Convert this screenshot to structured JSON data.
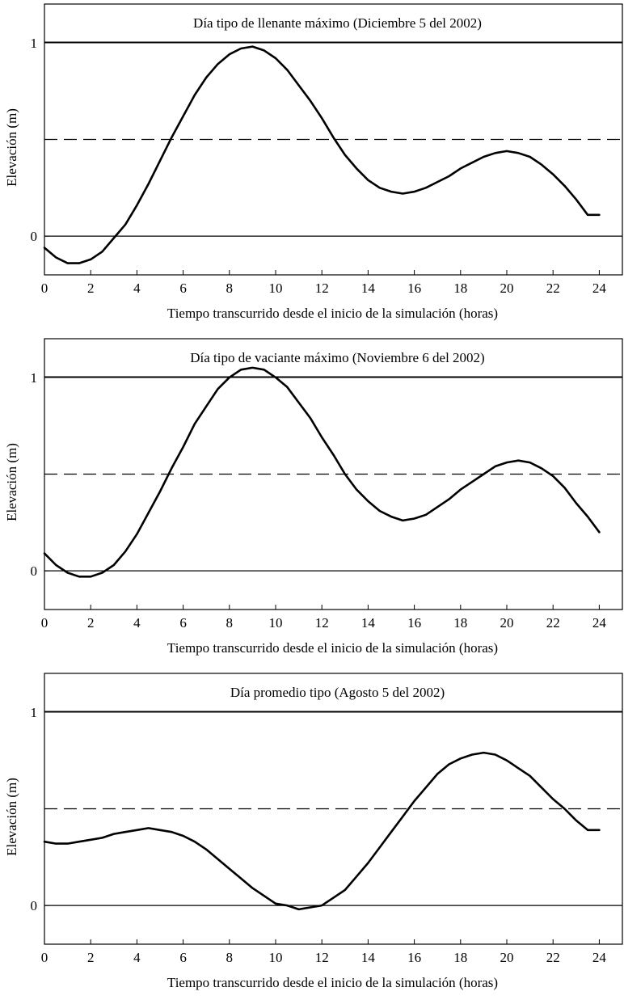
{
  "chart_data": [
    {
      "type": "line",
      "title": "Día tipo de llenante máximo (Diciembre 5 del 2002)",
      "xlabel": "Tiempo transcurrido desde el inicio de la simulación (horas)",
      "ylabel": "Elevación (m)",
      "xlim": [
        0,
        25
      ],
      "ylim": [
        -0.2,
        1.2
      ],
      "xticks": [
        "0",
        "2",
        "4",
        "6",
        "8",
        "10",
        "12",
        "14",
        "16",
        "18",
        "20",
        "22",
        "24"
      ],
      "yticks": [
        "0",
        "1"
      ],
      "reference_lines": [
        {
          "y": 1,
          "style": "solid"
        },
        {
          "y": 0.5,
          "style": "dashed"
        },
        {
          "y": 0,
          "style": "solid"
        }
      ],
      "series": [
        {
          "x": [
            0,
            0.5,
            1,
            1.5,
            2,
            2.5,
            3,
            3.5,
            4,
            4.5,
            5,
            5.5,
            6,
            6.5,
            7,
            7.5,
            8,
            8.5,
            9,
            9.5,
            10,
            10.5,
            11,
            11.5,
            12,
            12.5,
            13,
            13.5,
            14,
            14.5,
            15,
            15.5,
            16,
            16.5,
            17,
            17.5,
            18,
            18.5,
            19,
            19.5,
            20,
            20.5,
            21,
            21.5,
            22,
            22.5,
            23,
            23.5,
            24
          ],
          "values": [
            -0.06,
            -0.11,
            -0.14,
            -0.14,
            -0.12,
            -0.08,
            -0.01,
            0.06,
            0.16,
            0.27,
            0.39,
            0.51,
            0.62,
            0.73,
            0.82,
            0.89,
            0.94,
            0.97,
            0.98,
            0.96,
            0.92,
            0.86,
            0.78,
            0.7,
            0.61,
            0.51,
            0.42,
            0.35,
            0.29,
            0.25,
            0.23,
            0.22,
            0.23,
            0.25,
            0.28,
            0.31,
            0.35,
            0.38,
            0.41,
            0.43,
            0.44,
            0.43,
            0.41,
            0.37,
            0.32,
            0.26,
            0.19,
            0.11,
            0.11
          ]
        }
      ]
    },
    {
      "type": "line",
      "title": "Día tipo de vaciante máximo (Noviembre 6 del 2002)",
      "xlabel": "Tiempo transcurrido desde el inicio de la simulación (horas)",
      "ylabel": "Elevación (m)",
      "xlim": [
        0,
        25
      ],
      "ylim": [
        -0.2,
        1.2
      ],
      "xticks": [
        "0",
        "2",
        "4",
        "6",
        "8",
        "10",
        "12",
        "14",
        "16",
        "18",
        "20",
        "22",
        "24"
      ],
      "yticks": [
        "0",
        "1"
      ],
      "reference_lines": [
        {
          "y": 1,
          "style": "solid"
        },
        {
          "y": 0.5,
          "style": "dashed"
        },
        {
          "y": 0,
          "style": "solid"
        }
      ],
      "series": [
        {
          "x": [
            0,
            0.5,
            1,
            1.5,
            2,
            2.5,
            3,
            3.5,
            4,
            4.5,
            5,
            5.5,
            6,
            6.5,
            7,
            7.5,
            8,
            8.5,
            9,
            9.5,
            10,
            10.5,
            11,
            11.5,
            12,
            12.5,
            13,
            13.5,
            14,
            14.5,
            15,
            15.5,
            16,
            16.5,
            17,
            17.5,
            18,
            18.5,
            19,
            19.5,
            20,
            20.5,
            21,
            21.5,
            22,
            22.5,
            23,
            23.5,
            24
          ],
          "values": [
            0.09,
            0.03,
            -0.01,
            -0.03,
            -0.03,
            -0.01,
            0.03,
            0.1,
            0.19,
            0.3,
            0.41,
            0.53,
            0.64,
            0.76,
            0.85,
            0.94,
            1.0,
            1.04,
            1.05,
            1.04,
            1.0,
            0.95,
            0.87,
            0.79,
            0.69,
            0.6,
            0.5,
            0.42,
            0.36,
            0.31,
            0.28,
            0.26,
            0.27,
            0.29,
            0.33,
            0.37,
            0.42,
            0.46,
            0.5,
            0.54,
            0.56,
            0.57,
            0.56,
            0.53,
            0.49,
            0.43,
            0.35,
            0.28,
            0.2
          ]
        }
      ]
    },
    {
      "type": "line",
      "title": "Día promedio tipo (Agosto 5 del 2002)",
      "xlabel": "Tiempo transcurrido desde el inicio de la simulación (horas)",
      "ylabel": "Elevación (m)",
      "xlim": [
        0,
        25
      ],
      "ylim": [
        -0.2,
        1.2
      ],
      "xticks": [
        "0",
        "2",
        "4",
        "6",
        "8",
        "10",
        "12",
        "14",
        "16",
        "18",
        "20",
        "22",
        "24"
      ],
      "yticks": [
        "0",
        "1"
      ],
      "reference_lines": [
        {
          "y": 1,
          "style": "solid"
        },
        {
          "y": 0.5,
          "style": "dashed"
        },
        {
          "y": 0,
          "style": "solid"
        }
      ],
      "series": [
        {
          "x": [
            0,
            0.5,
            1,
            1.5,
            2,
            2.5,
            3,
            3.5,
            4,
            4.5,
            5,
            5.5,
            6,
            6.5,
            7,
            7.5,
            8,
            8.5,
            9,
            9.5,
            10,
            10.5,
            11,
            11.5,
            12,
            12.5,
            13,
            13.5,
            14,
            14.5,
            15,
            15.5,
            16,
            16.5,
            17,
            17.5,
            18,
            18.5,
            19,
            19.5,
            20,
            20.5,
            21,
            21.5,
            22,
            22.5,
            23,
            23.5,
            24
          ],
          "values": [
            0.33,
            0.32,
            0.32,
            0.33,
            0.34,
            0.35,
            0.37,
            0.38,
            0.39,
            0.4,
            0.39,
            0.38,
            0.36,
            0.33,
            0.29,
            0.24,
            0.19,
            0.14,
            0.09,
            0.05,
            0.01,
            0.0,
            -0.02,
            -0.01,
            0.0,
            0.04,
            0.08,
            0.15,
            0.22,
            0.3,
            0.38,
            0.46,
            0.54,
            0.61,
            0.68,
            0.73,
            0.76,
            0.78,
            0.79,
            0.78,
            0.75,
            0.71,
            0.67,
            0.61,
            0.55,
            0.5,
            0.44,
            0.39,
            0.39
          ]
        }
      ]
    }
  ]
}
